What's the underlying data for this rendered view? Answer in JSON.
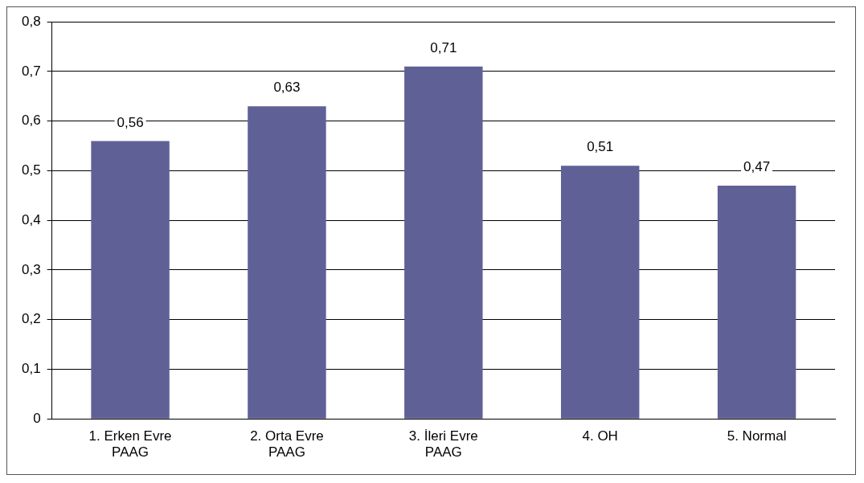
{
  "chart_data": {
    "type": "bar",
    "categories": [
      "1. Erken Evre PAAG",
      "2. Orta Evre PAAG",
      "3. İleri Evre PAAG",
      "4. OH",
      "5. Normal"
    ],
    "values": [
      0.56,
      0.63,
      0.71,
      0.51,
      0.47
    ],
    "value_labels": [
      "0,56",
      "0,63",
      "0,71",
      "0,51",
      "0,47"
    ],
    "color": "#5f6196",
    "ylim": [
      0,
      0.8
    ],
    "yticks": [
      {
        "value": 0,
        "label": "0"
      },
      {
        "value": 0.1,
        "label": "0,1"
      },
      {
        "value": 0.2,
        "label": "0,2"
      },
      {
        "value": 0.3,
        "label": "0,3"
      },
      {
        "value": 0.4,
        "label": "0,4"
      },
      {
        "value": 0.5,
        "label": "0,5"
      },
      {
        "value": 0.6,
        "label": "0,6"
      },
      {
        "value": 0.7,
        "label": "0,7"
      },
      {
        "value": 0.8,
        "label": "0,8"
      }
    ],
    "grid": "y",
    "legend": false
  }
}
